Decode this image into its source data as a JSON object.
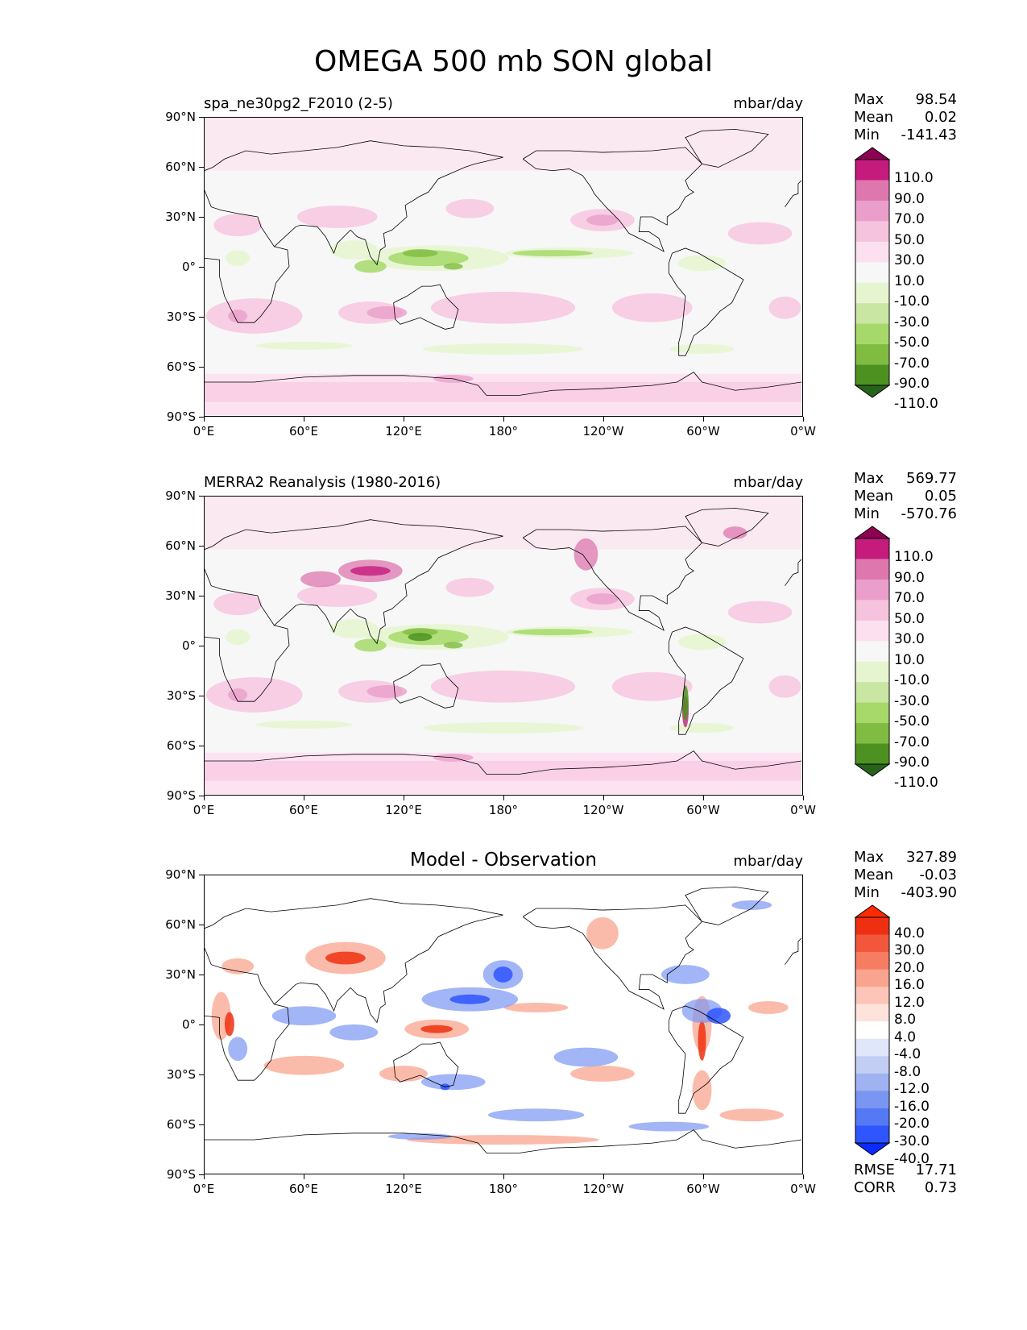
{
  "title": "OMEGA 500 mb SON global",
  "lat_ticks": [
    "90°N",
    "60°N",
    "30°N",
    "0°",
    "30°S",
    "60°S",
    "90°S"
  ],
  "lon_ticks": [
    "0°E",
    "60°E",
    "120°E",
    "180°",
    "120°W",
    "60°W",
    "0°W"
  ],
  "colors": {
    "piyg": [
      "#276419",
      "#4d9221",
      "#7fbc41",
      "#a6d96a",
      "#c9e6a3",
      "#e6f5d0",
      "#f7f7f7",
      "#fde0ef",
      "#f6c3df",
      "#ea9fcb",
      "#de77ae",
      "#c51b7d",
      "#8e0152"
    ],
    "diff": [
      "#0a2bff",
      "#2f55ff",
      "#5578f5",
      "#7a96f2",
      "#9fb2f2",
      "#c3cef5",
      "#e1e7fa",
      "#ffffff",
      "#fde3dc",
      "#fcc5b8",
      "#f9a48e",
      "#f77d62",
      "#f2573c",
      "#ee3011",
      "#ff2a00"
    ]
  },
  "panels": [
    {
      "id": "model",
      "left_label": "spa_ne30pg2_F2010 (2-5)",
      "center_label": "",
      "units": "mbar/day",
      "stats": {
        "max_label": "Max",
        "max": "98.54",
        "mean_label": "Mean",
        "mean": "0.02",
        "min_label": "Min",
        "min": "-141.43"
      },
      "colorbar": [
        "110.0",
        "90.0",
        "70.0",
        "50.0",
        "30.0",
        "10.0",
        "-10.0",
        "-30.0",
        "-50.0",
        "-70.0",
        "-90.0",
        "-110.0"
      ],
      "palette": "piyg"
    },
    {
      "id": "obs",
      "left_label": "MERRA2 Reanalysis (1980-2016)",
      "center_label": "",
      "units": "mbar/day",
      "stats": {
        "max_label": "Max",
        "max": "569.77",
        "mean_label": "Mean",
        "mean": "0.05",
        "min_label": "Min",
        "min": "-570.76"
      },
      "colorbar": [
        "110.0",
        "90.0",
        "70.0",
        "50.0",
        "30.0",
        "10.0",
        "-10.0",
        "-30.0",
        "-50.0",
        "-70.0",
        "-90.0",
        "-110.0"
      ],
      "palette": "piyg"
    },
    {
      "id": "diff",
      "left_label": "",
      "center_label": "Model - Observation",
      "units": "mbar/day",
      "stats": {
        "max_label": "Max",
        "max": "327.89",
        "mean_label": "Mean",
        "mean": "-0.03",
        "min_label": "Min",
        "min": "-403.90"
      },
      "colorbar": [
        "40.0",
        "30.0",
        "20.0",
        "16.0",
        "12.0",
        "8.0",
        "4.0",
        "-4.0",
        "-8.0",
        "-12.0",
        "-16.0",
        "-20.0",
        "-30.0",
        "-40.0"
      ],
      "palette": "diff",
      "extra": {
        "rmse_label": "RMSE",
        "rmse": "17.71",
        "corr_label": "CORR",
        "corr": "0.73"
      }
    }
  ]
}
